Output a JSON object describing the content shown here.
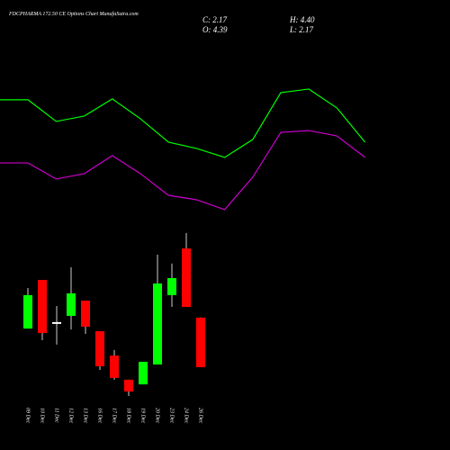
{
  "chart_data": [
    {
      "type": "candlestick",
      "title": "FDCPHARMA 172.50  CE Options Chart MunafaSutra.com",
      "annotations": [
        "C: 2.17",
        "H: 4.40",
        "O: 4.39",
        "L: 2.17"
      ],
      "categories": [
        "09 Dec",
        "10 Dec",
        "11 Dec",
        "12 Dec",
        "13 Dec",
        "16 Dec",
        "17 Dec",
        "18 Dec",
        "19 Dec",
        "20 Dec",
        "23 Dec",
        "24 Dec",
        "26 Dec"
      ],
      "open": [
        3.9,
        6.08,
        4.19,
        4.47,
        5.15,
        3.78,
        2.69,
        1.61,
        1.4,
        2.29,
        5.4,
        7.49,
        4.39
      ],
      "high": [
        5.72,
        6.08,
        4.91,
        6.65,
        5.15,
        3.78,
        2.94,
        1.61,
        2.41,
        7.21,
        6.81,
        8.18,
        4.4
      ],
      "low": [
        3.9,
        3.38,
        3.18,
        3.86,
        3.66,
        2.05,
        1.61,
        0.88,
        1.4,
        2.29,
        4.87,
        4.87,
        2.17
      ],
      "close": [
        5.4,
        3.7,
        4.19,
        5.48,
        3.98,
        2.21,
        1.69,
        1.08,
        2.41,
        5.92,
        6.16,
        4.87,
        2.17
      ],
      "up_color": "#00ff00",
      "down_color": "#ff0000",
      "flat_color": "#ffffff",
      "ylim": [
        -1.54,
        18.62
      ]
    },
    {
      "type": "line",
      "series": [
        {
          "color": "#00ff00",
          "values": [
            14.15,
            14.15,
            13.18,
            13.42,
            14.19,
            13.3,
            12.25,
            11.97,
            11.57,
            12.37,
            14.47,
            14.63,
            13.78,
            12.25
          ]
        },
        {
          "color": "#cc00cc",
          "values": [
            11.32,
            11.32,
            10.6,
            10.84,
            11.65,
            10.84,
            9.87,
            9.67,
            9.23,
            10.68,
            12.69,
            12.77,
            12.53,
            11.57
          ]
        }
      ],
      "ylim": [
        -1.54,
        18.62
      ]
    }
  ]
}
